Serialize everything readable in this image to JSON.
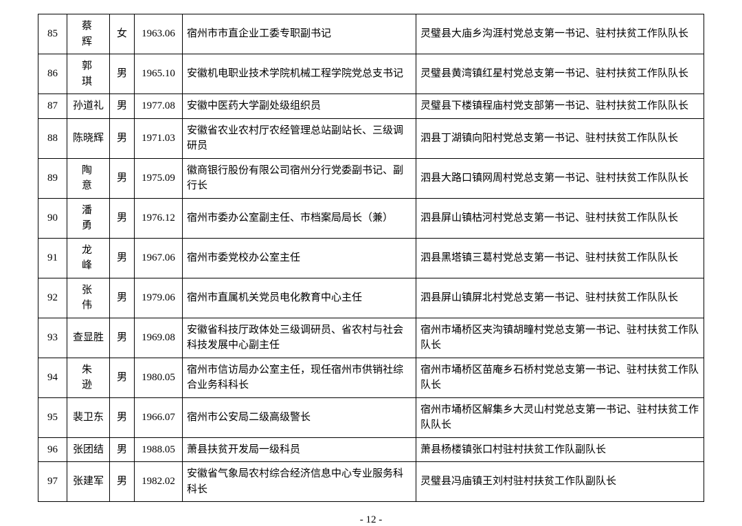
{
  "page_number": "- 12 -",
  "columns": {
    "widths": [
      42,
      62,
      36,
      70,
      340,
      0
    ],
    "align": [
      "center",
      "center",
      "center",
      "center",
      "left",
      "left"
    ]
  },
  "rows": [
    {
      "idx": "85",
      "name": "蔡　辉",
      "name_tight": false,
      "gender": "女",
      "date": "1963.06",
      "pos": "宿州市市直企业工委专职副书记",
      "assign": "灵璧县大庙乡沟涯村党总支第一书记、驻村扶贫工作队队长"
    },
    {
      "idx": "86",
      "name": "郭　琪",
      "name_tight": false,
      "gender": "男",
      "date": "1965.10",
      "pos": "安徽机电职业技术学院机械工程学院党总支书记",
      "assign": "灵璧县黄湾镇红星村党总支第一书记、驻村扶贫工作队队长"
    },
    {
      "idx": "87",
      "name": "孙道礼",
      "name_tight": true,
      "gender": "男",
      "date": "1977.08",
      "pos": "安徽中医药大学副处级组织员",
      "assign": "灵璧县下楼镇程庙村党支部第一书记、驻村扶贫工作队队长"
    },
    {
      "idx": "88",
      "name": "陈晓辉",
      "name_tight": true,
      "gender": "男",
      "date": "1971.03",
      "pos": "安徽省农业农村厅农经管理总站副站长、三级调研员",
      "assign": "泗县丁湖镇向阳村党总支第一书记、驻村扶贫工作队队长"
    },
    {
      "idx": "89",
      "name": "陶　意",
      "name_tight": false,
      "gender": "男",
      "date": "1975.09",
      "pos": "徽商银行股份有限公司宿州分行党委副书记、副行长",
      "assign": "泗县大路口镇网周村党总支第一书记、驻村扶贫工作队队长"
    },
    {
      "idx": "90",
      "name": "潘　勇",
      "name_tight": false,
      "gender": "男",
      "date": "1976.12",
      "pos": "宿州市委办公室副主任、市档案局局长（兼）",
      "assign": "泗县屏山镇枯河村党总支第一书记、驻村扶贫工作队队长"
    },
    {
      "idx": "91",
      "name": "龙　峰",
      "name_tight": false,
      "gender": "男",
      "date": "1967.06",
      "pos": "宿州市委党校办公室主任",
      "assign": "泗县黑塔镇三葛村党总支第一书记、驻村扶贫工作队队长"
    },
    {
      "idx": "92",
      "name": "张　伟",
      "name_tight": false,
      "gender": "男",
      "date": "1979.06",
      "pos": "宿州市直属机关党员电化教育中心主任",
      "assign": "泗县屏山镇屏北村党总支第一书记、驻村扶贫工作队队长"
    },
    {
      "idx": "93",
      "name": "查显胜",
      "name_tight": true,
      "gender": "男",
      "date": "1969.08",
      "pos": "安徽省科技厅政体处三级调研员、省农村与社会科技发展中心副主任",
      "assign": "宿州市埇桥区夹沟镇胡疃村党总支第一书记、驻村扶贫工作队队长"
    },
    {
      "idx": "94",
      "name": "朱　逊",
      "name_tight": false,
      "gender": "男",
      "date": "1980.05",
      "pos": "宿州市信访局办公室主任，现任宿州市供销社综合业务科科长",
      "assign": "宿州市埇桥区苗庵乡石桥村党总支第一书记、驻村扶贫工作队队长"
    },
    {
      "idx": "95",
      "name": "裴卫东",
      "name_tight": true,
      "gender": "男",
      "date": "1966.07",
      "pos": "宿州市公安局二级高级警长",
      "assign": "宿州市埇桥区解集乡大灵山村党总支第一书记、驻村扶贫工作队队长"
    },
    {
      "idx": "96",
      "name": "张团结",
      "name_tight": true,
      "gender": "男",
      "date": "1988.05",
      "pos": "萧县扶贫开发局一级科员",
      "assign": "萧县杨楼镇张口村驻村扶贫工作队副队长"
    },
    {
      "idx": "97",
      "name": "张建军",
      "name_tight": true,
      "gender": "男",
      "date": "1982.02",
      "pos": "安徽省气象局农村综合经济信息中心专业服务科科长",
      "assign": "灵璧县冯庙镇王刘村驻村扶贫工作队副队长"
    }
  ]
}
